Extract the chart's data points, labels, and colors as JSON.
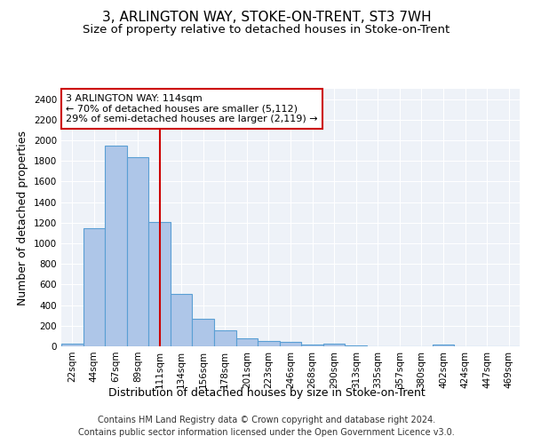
{
  "title": "3, ARLINGTON WAY, STOKE-ON-TRENT, ST3 7WH",
  "subtitle": "Size of property relative to detached houses in Stoke-on-Trent",
  "xlabel": "Distribution of detached houses by size in Stoke-on-Trent",
  "ylabel": "Number of detached properties",
  "footer_line1": "Contains HM Land Registry data © Crown copyright and database right 2024.",
  "footer_line2": "Contains public sector information licensed under the Open Government Licence v3.0.",
  "categories": [
    "22sqm",
    "44sqm",
    "67sqm",
    "89sqm",
    "111sqm",
    "134sqm",
    "156sqm",
    "178sqm",
    "201sqm",
    "223sqm",
    "246sqm",
    "268sqm",
    "290sqm",
    "313sqm",
    "335sqm",
    "357sqm",
    "380sqm",
    "402sqm",
    "424sqm",
    "447sqm",
    "469sqm"
  ],
  "values": [
    30,
    1145,
    1950,
    1840,
    1210,
    510,
    265,
    155,
    80,
    48,
    42,
    15,
    22,
    12,
    0,
    0,
    0,
    18,
    0,
    0,
    0
  ],
  "bar_color": "#aec6e8",
  "bar_edge_color": "#5a9fd4",
  "bar_edge_width": 0.8,
  "vline_x_index": 4,
  "vline_color": "#cc0000",
  "annotation_title": "3 ARLINGTON WAY: 114sqm",
  "annotation_line1": "← 70% of detached houses are smaller (5,112)",
  "annotation_line2": "29% of semi-detached houses are larger (2,119) →",
  "annotation_box_color": "#cc0000",
  "annotation_bg": "#ffffff",
  "ylim": [
    0,
    2500
  ],
  "yticks": [
    0,
    200,
    400,
    600,
    800,
    1000,
    1200,
    1400,
    1600,
    1800,
    2000,
    2200,
    2400
  ],
  "title_fontsize": 11,
  "subtitle_fontsize": 9.5,
  "xlabel_fontsize": 9,
  "ylabel_fontsize": 9,
  "tick_fontsize": 7.5,
  "footer_fontsize": 7,
  "bg_color": "#eef2f8",
  "grid_color": "#ffffff",
  "figure_bg": "#ffffff"
}
